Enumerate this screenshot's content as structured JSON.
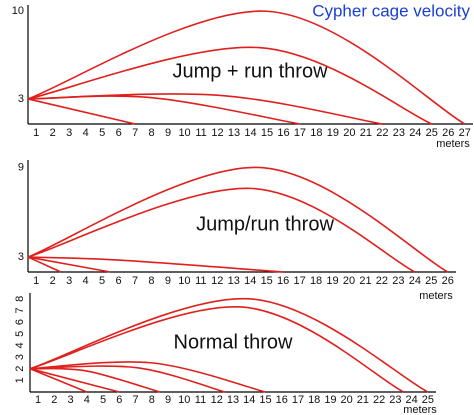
{
  "chart_data": [
    {
      "type": "line",
      "title": "Cypher cage velocity",
      "annotation": "Jump + run throw",
      "xlabel": "meters",
      "xlim": [
        0.5,
        27.5
      ],
      "ylim": [
        1,
        10.5
      ],
      "xticks": [
        1,
        2,
        3,
        4,
        5,
        6,
        7,
        8,
        9,
        10,
        11,
        12,
        13,
        14,
        15,
        16,
        17,
        18,
        19,
        20,
        21,
        22,
        23,
        24,
        25,
        26,
        27
      ],
      "yticks": [
        3,
        10
      ],
      "series": [
        {
          "color": "#e0201c",
          "x": [
            0.5,
            7
          ],
          "values": [
            3,
            1
          ]
        },
        {
          "color": "#e0201c",
          "x": [
            0.5,
            8,
            17
          ],
          "values": [
            3,
            3.1,
            1
          ]
        },
        {
          "color": "#e0201c",
          "x": [
            0.5,
            12,
            22
          ],
          "values": [
            3,
            3.3,
            1
          ]
        },
        {
          "color": "#e0201c",
          "x": [
            0.5,
            14.5,
            25
          ],
          "values": [
            3,
            7.1,
            1
          ]
        },
        {
          "color": "#e0201c",
          "x": [
            0.5,
            15,
            27
          ],
          "values": [
            3,
            10,
            1
          ]
        }
      ]
    },
    {
      "type": "line",
      "annotation": "Jump/run throw",
      "xlabel": "meters",
      "xlim": [
        0.5,
        26.5
      ],
      "ylim": [
        2,
        9.5
      ],
      "xticks": [
        1,
        2,
        3,
        4,
        5,
        6,
        7,
        8,
        9,
        10,
        11,
        12,
        13,
        14,
        15,
        16,
        17,
        18,
        19,
        20,
        21,
        22,
        23,
        24,
        25,
        26
      ],
      "yticks": [
        3,
        9
      ],
      "series": [
        {
          "color": "#e0201c",
          "x": [
            0.5,
            2.5
          ],
          "values": [
            3,
            2
          ]
        },
        {
          "color": "#e0201c",
          "x": [
            0.5,
            5.5
          ],
          "values": [
            3,
            2
          ]
        },
        {
          "color": "#e0201c",
          "x": [
            0.5,
            6,
            16
          ],
          "values": [
            3,
            2.8,
            2
          ]
        },
        {
          "color": "#e0201c",
          "x": [
            0.5,
            14,
            24
          ],
          "values": [
            3,
            7.6,
            2
          ]
        },
        {
          "color": "#e0201c",
          "x": [
            0.5,
            14.5,
            26
          ],
          "values": [
            3,
            9,
            2
          ]
        }
      ]
    },
    {
      "type": "line",
      "annotation": "Normal throw",
      "xlabel": "meters",
      "xlim": [
        0.5,
        25.5
      ],
      "ylim": [
        0,
        8.5
      ],
      "xticks": [
        1,
        2,
        3,
        4,
        5,
        6,
        7,
        8,
        9,
        10,
        11,
        12,
        13,
        14,
        15,
        16,
        17,
        18,
        19,
        20,
        21,
        22,
        23,
        24,
        25
      ],
      "yticks": [
        1,
        2,
        3,
        4,
        5,
        6,
        7,
        8
      ],
      "series": [
        {
          "color": "#e0201c",
          "x": [
            0.5,
            4
          ],
          "values": [
            2,
            0
          ]
        },
        {
          "color": "#e0201c",
          "x": [
            0.5,
            6
          ],
          "values": [
            2,
            0
          ]
        },
        {
          "color": "#e0201c",
          "x": [
            0.5,
            4,
            8.5
          ],
          "values": [
            2,
            1.8,
            0
          ]
        },
        {
          "color": "#e0201c",
          "x": [
            0.5,
            7,
            12.5
          ],
          "values": [
            2,
            2.1,
            0
          ]
        },
        {
          "color": "#e0201c",
          "x": [
            0.5,
            8,
            15
          ],
          "values": [
            2,
            2.5,
            0
          ]
        },
        {
          "color": "#e0201c",
          "x": [
            0.5,
            13.5,
            23.5
          ],
          "values": [
            2,
            7.3,
            0
          ]
        },
        {
          "color": "#e0201c",
          "x": [
            0.5,
            14,
            25
          ],
          "values": [
            2,
            8,
            0
          ]
        }
      ]
    }
  ]
}
